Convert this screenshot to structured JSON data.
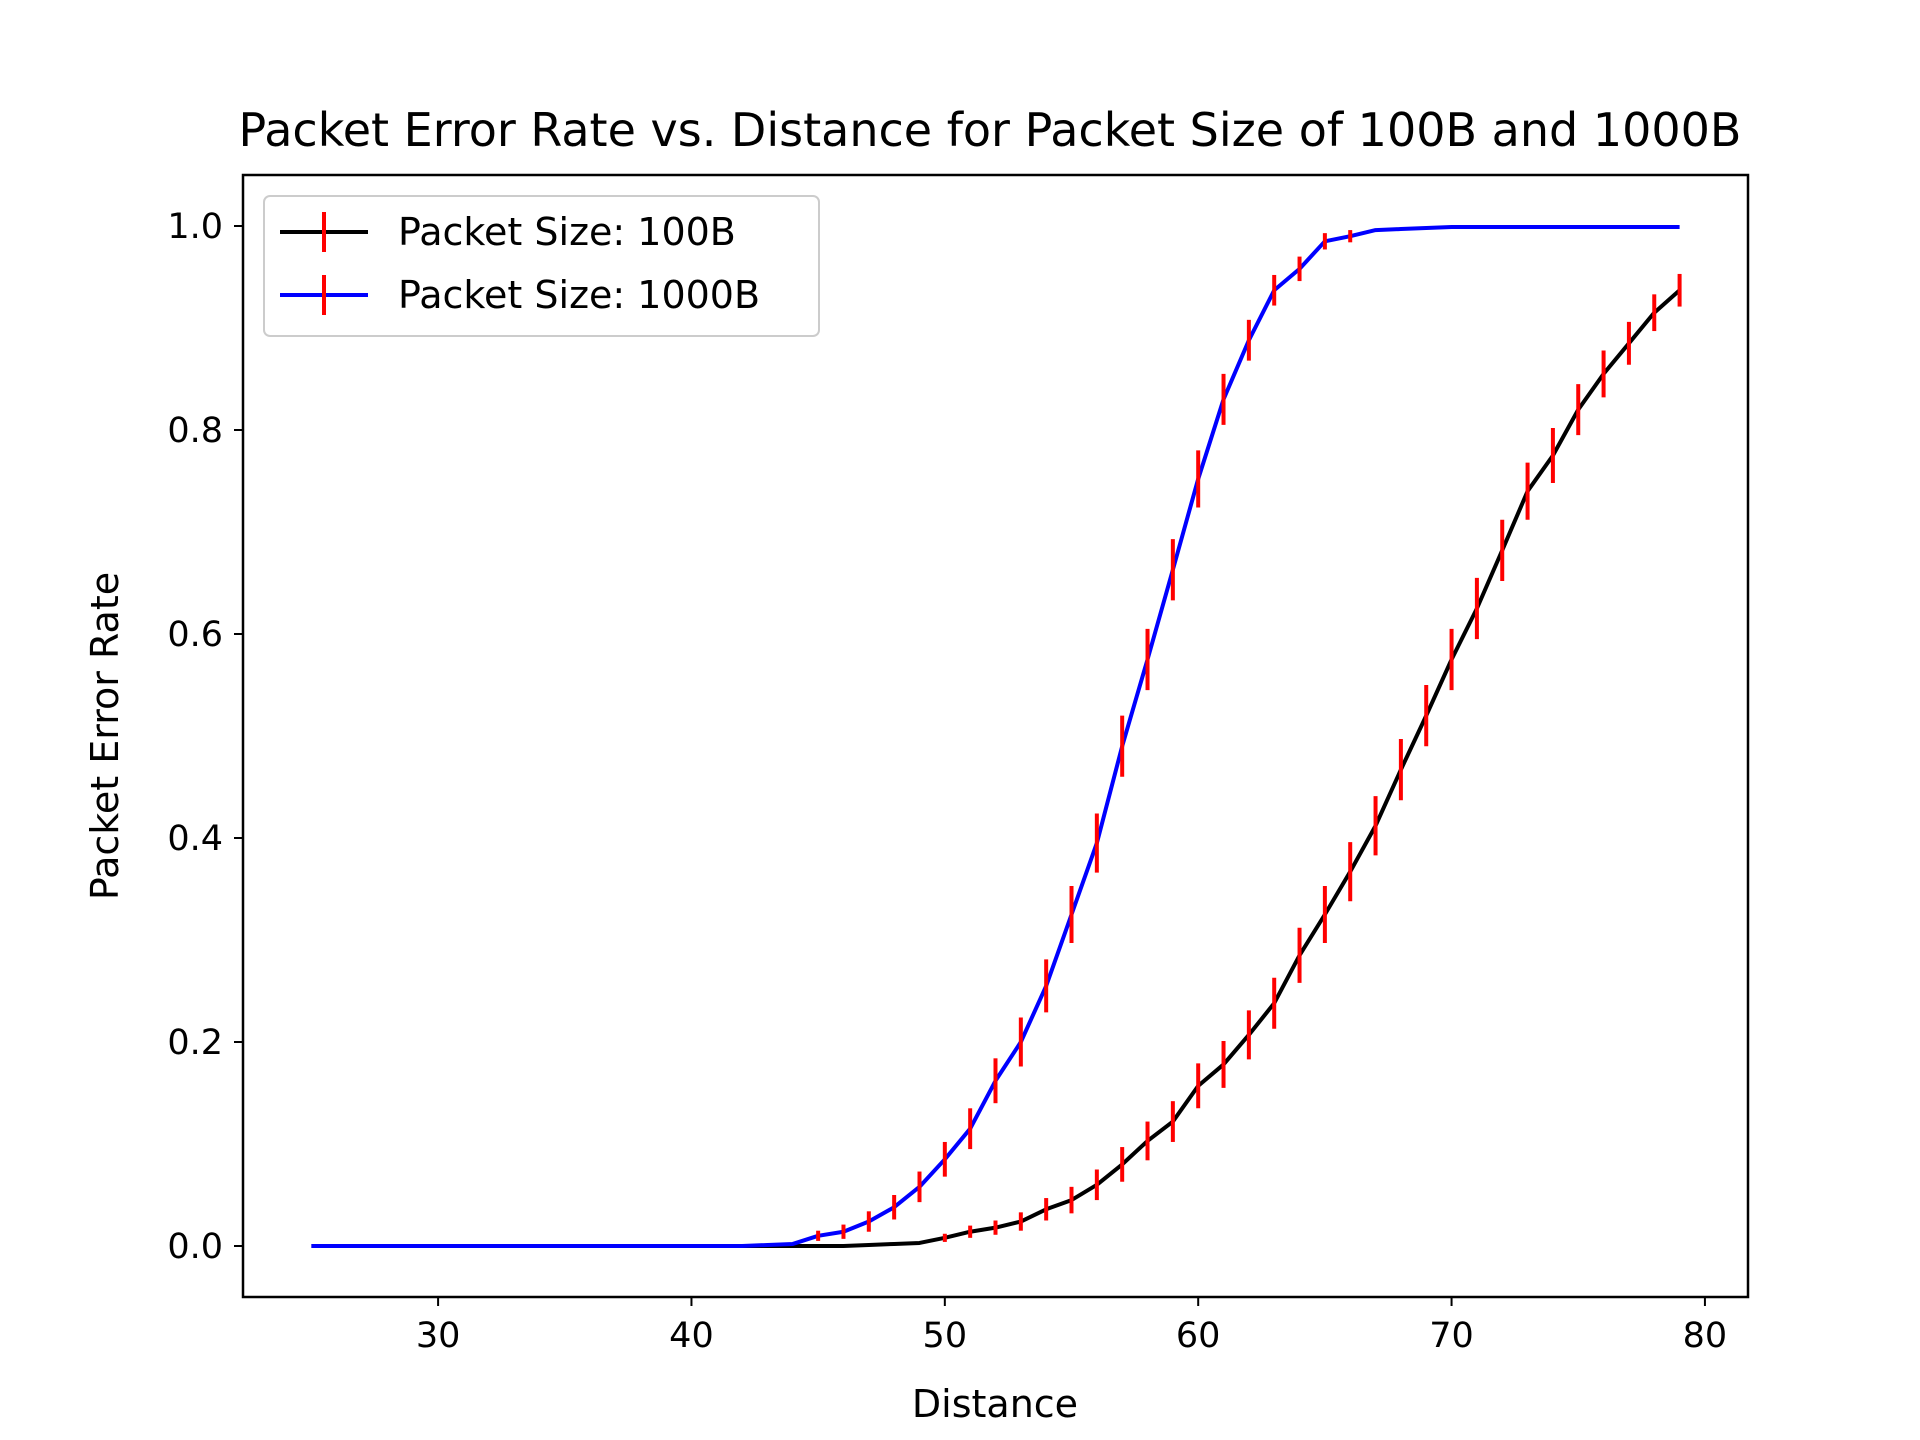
{
  "chart_data": {
    "type": "line",
    "title": "Packet Error Rate vs. Distance for Packet Size of 100B and 1000B",
    "xlabel": "Distance",
    "ylabel": "Packet Error Rate",
    "xlim": [
      22.3,
      81.7
    ],
    "ylim": [
      -0.05,
      1.05
    ],
    "xticks": [
      30,
      40,
      50,
      60,
      70,
      80
    ],
    "yticks": [
      0.0,
      0.2,
      0.4,
      0.6,
      0.8,
      1.0
    ],
    "grid": false,
    "legend_position": "upper-left",
    "error_bar_color": "#ff0000",
    "series": [
      {
        "name": "Packet Size: 100B",
        "color": "#000000",
        "x": [
          25,
          26,
          27,
          28,
          29,
          30,
          31,
          32,
          33,
          34,
          35,
          36,
          37,
          38,
          39,
          40,
          41,
          42,
          43,
          44,
          45,
          46,
          47,
          48,
          49,
          50,
          51,
          52,
          53,
          54,
          55,
          56,
          57,
          58,
          59,
          60,
          61,
          62,
          63,
          64,
          65,
          66,
          67,
          68,
          69,
          70,
          71,
          72,
          73,
          74,
          75,
          76,
          77,
          78,
          79
        ],
        "y": [
          0,
          0,
          0,
          0,
          0,
          0,
          0,
          0,
          0,
          0,
          0,
          0,
          0,
          0,
          0,
          0,
          0,
          0,
          0,
          0,
          0,
          0,
          0.001,
          0.002,
          0.003,
          0.008,
          0.014,
          0.018,
          0.024,
          0.036,
          0.045,
          0.06,
          0.08,
          0.103,
          0.122,
          0.157,
          0.178,
          0.207,
          0.238,
          0.285,
          0.325,
          0.367,
          0.412,
          0.467,
          0.52,
          0.575,
          0.625,
          0.682,
          0.74,
          0.775,
          0.82,
          0.855,
          0.885,
          0.915,
          0.937
        ],
        "yerr": [
          0,
          0,
          0,
          0,
          0,
          0,
          0,
          0,
          0,
          0,
          0,
          0,
          0,
          0,
          0,
          0,
          0,
          0,
          0,
          0,
          0,
          0,
          0,
          0,
          0,
          0.004,
          0.006,
          0.007,
          0.009,
          0.011,
          0.013,
          0.015,
          0.017,
          0.019,
          0.02,
          0.022,
          0.023,
          0.024,
          0.025,
          0.027,
          0.028,
          0.029,
          0.029,
          0.03,
          0.03,
          0.03,
          0.03,
          0.03,
          0.028,
          0.027,
          0.025,
          0.023,
          0.021,
          0.018,
          0.016
        ]
      },
      {
        "name": "Packet Size: 1000B",
        "color": "#0000ff",
        "x": [
          25,
          26,
          27,
          28,
          29,
          30,
          31,
          32,
          33,
          34,
          35,
          36,
          37,
          38,
          39,
          40,
          41,
          42,
          43,
          44,
          45,
          46,
          47,
          48,
          49,
          50,
          51,
          52,
          53,
          54,
          55,
          56,
          57,
          58,
          59,
          60,
          61,
          62,
          63,
          64,
          65,
          66,
          67,
          68,
          69,
          70,
          71,
          72,
          73,
          74,
          75,
          76,
          77,
          78,
          79
        ],
        "y": [
          0,
          0,
          0,
          0,
          0,
          0,
          0,
          0,
          0,
          0,
          0,
          0,
          0,
          0,
          0,
          0,
          0,
          0,
          0.001,
          0.002,
          0.01,
          0.014,
          0.024,
          0.038,
          0.058,
          0.085,
          0.115,
          0.162,
          0.2,
          0.255,
          0.325,
          0.395,
          0.49,
          0.575,
          0.663,
          0.752,
          0.83,
          0.888,
          0.937,
          0.958,
          0.985,
          0.99,
          0.996,
          0.997,
          0.998,
          0.999,
          0.999,
          0.999,
          0.999,
          0.999,
          0.999,
          0.999,
          0.999,
          0.999,
          0.999
        ],
        "yerr": [
          0,
          0,
          0,
          0,
          0,
          0,
          0,
          0,
          0,
          0,
          0,
          0,
          0,
          0,
          0,
          0,
          0,
          0,
          0,
          0,
          0.005,
          0.007,
          0.01,
          0.012,
          0.015,
          0.017,
          0.02,
          0.022,
          0.024,
          0.026,
          0.028,
          0.029,
          0.03,
          0.03,
          0.03,
          0.028,
          0.025,
          0.02,
          0.015,
          0.012,
          0.008,
          0.006,
          0,
          0,
          0,
          0,
          0,
          0,
          0,
          0,
          0,
          0,
          0,
          0,
          0
        ]
      }
    ]
  }
}
